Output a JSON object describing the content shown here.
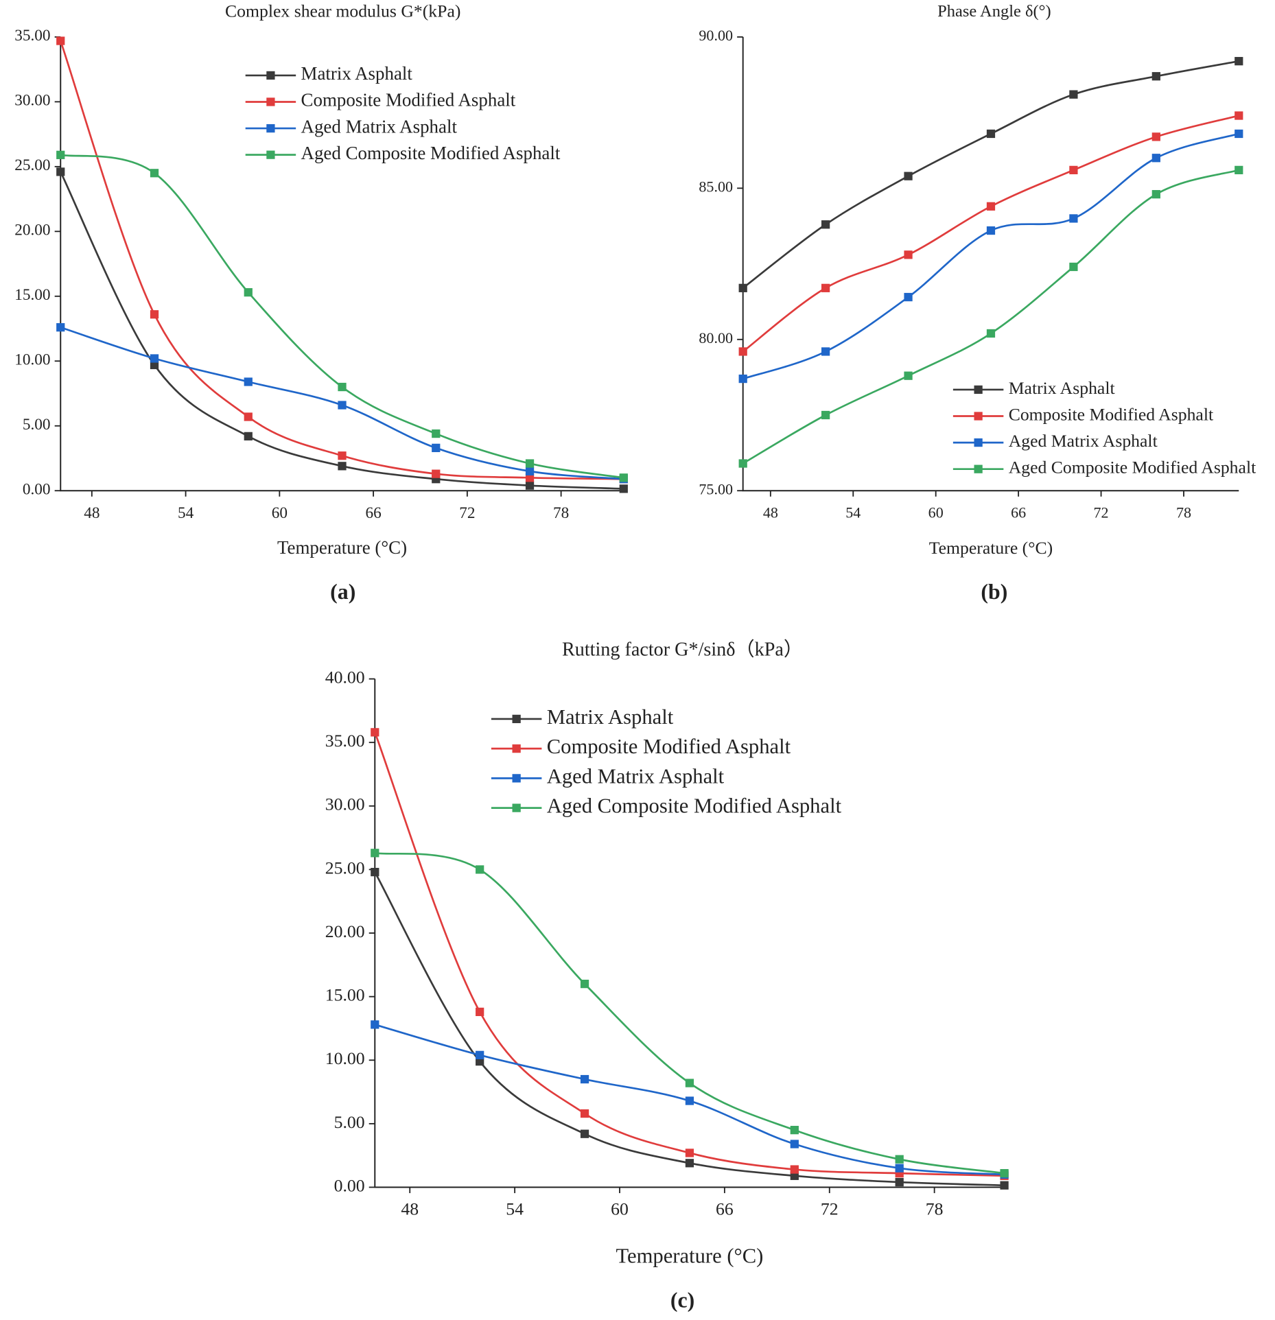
{
  "chart_data": [
    {
      "type": "line",
      "title": "Complex shear modulus G*(kPa)",
      "x_label": "Temperature (°C)",
      "panel_label": "(a)",
      "x": [
        46,
        52,
        58,
        64,
        70,
        76,
        82
      ],
      "xlim": [
        46,
        82
      ],
      "xticks": [
        48,
        54,
        60,
        66,
        72,
        78
      ],
      "ylim": [
        0,
        35
      ],
      "yticks": [
        {
          "value": 0,
          "label": "0.00"
        },
        {
          "value": 5,
          "label": "5.00"
        },
        {
          "value": 10,
          "label": "10.00"
        },
        {
          "value": 15,
          "label": "15.00"
        },
        {
          "value": 20,
          "label": "20.00"
        },
        {
          "value": 25,
          "label": "25.00"
        },
        {
          "value": 30,
          "label": "30.00"
        },
        {
          "value": 35,
          "label": "35.00"
        }
      ],
      "legend": "upper right",
      "series": [
        {
          "name": "Matrix Asphalt",
          "color": "#3a3a3a",
          "values": [
            24.6,
            9.7,
            4.2,
            1.9,
            0.9,
            0.4,
            0.15
          ]
        },
        {
          "name": "Composite Modified Asphalt",
          "color": "#e03c3c",
          "values": [
            34.7,
            13.6,
            5.7,
            2.7,
            1.3,
            1.0,
            0.9
          ]
        },
        {
          "name": "Aged Matrix Asphalt",
          "color": "#1f66c9",
          "values": [
            12.6,
            10.2,
            8.4,
            6.6,
            3.3,
            1.5,
            0.9
          ]
        },
        {
          "name": "Aged Composite Modified Asphalt",
          "color": "#3aa860",
          "values": [
            25.9,
            24.5,
            15.3,
            8.0,
            4.4,
            2.1,
            1.0
          ]
        }
      ]
    },
    {
      "type": "line",
      "title": "Phase Angle δ(°)",
      "x_label": "Temperature (°C)",
      "panel_label": "(b)",
      "x": [
        46,
        52,
        58,
        64,
        70,
        76,
        82
      ],
      "xlim": [
        46,
        82
      ],
      "xticks": [
        48,
        54,
        60,
        66,
        72,
        78
      ],
      "ylim": [
        75,
        90
      ],
      "yticks": [
        {
          "value": 75,
          "label": "75.00"
        },
        {
          "value": 80,
          "label": "80.00"
        },
        {
          "value": 85,
          "label": "85.00"
        },
        {
          "value": 90,
          "label": "90.00"
        }
      ],
      "legend": "lower right",
      "series": [
        {
          "name": "Matrix Asphalt",
          "color": "#3a3a3a",
          "values": [
            81.7,
            83.8,
            85.4,
            86.8,
            88.1,
            88.7,
            89.2
          ]
        },
        {
          "name": "Composite Modified Asphalt",
          "color": "#e03c3c",
          "values": [
            79.6,
            81.7,
            82.8,
            84.4,
            85.6,
            86.7,
            87.4
          ]
        },
        {
          "name": "Aged Matrix Asphalt",
          "color": "#1f66c9",
          "values": [
            78.7,
            79.6,
            81.4,
            83.6,
            84.0,
            86.0,
            86.8
          ]
        },
        {
          "name": "Aged Composite Modified Asphalt",
          "color": "#3aa860",
          "values": [
            75.9,
            77.5,
            78.8,
            80.2,
            82.4,
            84.8,
            85.6
          ]
        }
      ]
    },
    {
      "type": "line",
      "title": "Rutting factor G*/sinδ（kPa）",
      "x_label": "Temperature (°C)",
      "panel_label": "(c)",
      "x": [
        46,
        52,
        58,
        64,
        70,
        76,
        82
      ],
      "xlim": [
        46,
        82
      ],
      "xticks": [
        48,
        54,
        60,
        66,
        72,
        78
      ],
      "ylim": [
        0,
        40
      ],
      "yticks": [
        {
          "value": 0,
          "label": "0.00"
        },
        {
          "value": 5,
          "label": "5.00"
        },
        {
          "value": 10,
          "label": "10.00"
        },
        {
          "value": 15,
          "label": "15.00"
        },
        {
          "value": 20,
          "label": "20.00"
        },
        {
          "value": 25,
          "label": "25.00"
        },
        {
          "value": 30,
          "label": "30.00"
        },
        {
          "value": 35,
          "label": "35.00"
        },
        {
          "value": 40,
          "label": "40.00"
        }
      ],
      "legend": "upper center",
      "series": [
        {
          "name": "Matrix Asphalt",
          "color": "#3a3a3a",
          "values": [
            24.8,
            9.9,
            4.2,
            1.9,
            0.9,
            0.4,
            0.15
          ]
        },
        {
          "name": "Composite Modified Asphalt",
          "color": "#e03c3c",
          "values": [
            35.8,
            13.8,
            5.8,
            2.7,
            1.4,
            1.1,
            0.9
          ]
        },
        {
          "name": "Aged Matrix Asphalt",
          "color": "#1f66c9",
          "values": [
            12.8,
            10.4,
            8.5,
            6.8,
            3.4,
            1.5,
            1.0
          ]
        },
        {
          "name": "Aged Composite Modified Asphalt",
          "color": "#3aa860",
          "values": [
            26.3,
            25.0,
            16.0,
            8.2,
            4.5,
            2.2,
            1.1
          ]
        }
      ]
    }
  ]
}
